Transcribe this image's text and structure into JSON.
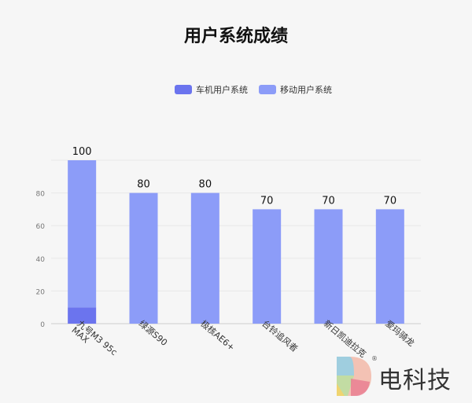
{
  "header": {
    "title": "用户系统成绩"
  },
  "chart_data": {
    "type": "bar",
    "stacked": true,
    "title": "用户系统成绩",
    "categories": [
      "九号M3 95c MAX",
      "绿源S90",
      "极核AE6+",
      "台铃追风者",
      "新日凯迪拉克",
      "爱玛骑龙"
    ],
    "series": [
      {
        "name": "车机用户系统",
        "color": "#6b74ee",
        "values": [
          10,
          0,
          0,
          0,
          0,
          0
        ]
      },
      {
        "name": "移动用户系统",
        "color": "#8c9cf8",
        "values": [
          90,
          80,
          80,
          70,
          70,
          70
        ]
      }
    ],
    "totals": [
      "100",
      "80",
      "80",
      "70",
      "70",
      "70"
    ],
    "yticks": [
      "0",
      "20",
      "40",
      "60",
      "80"
    ],
    "ylim": [
      0,
      100
    ],
    "grid": true,
    "legend_position": "top-center"
  },
  "watermark": {
    "text": "电科技",
    "registered": "®"
  }
}
